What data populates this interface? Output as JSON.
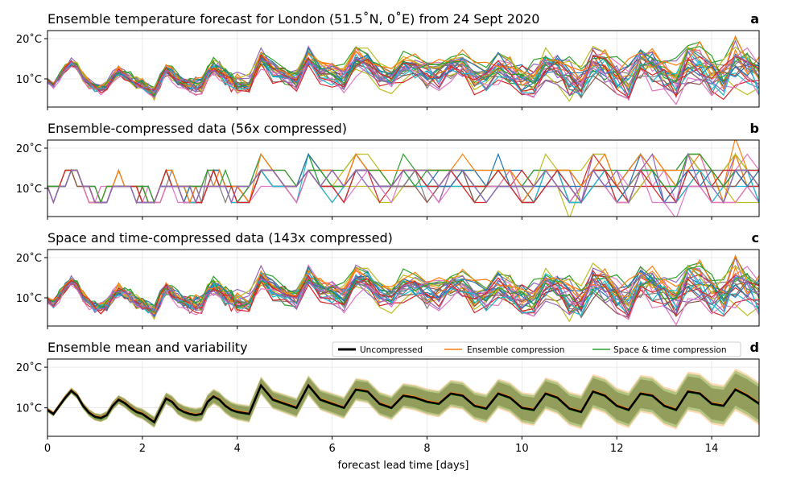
{
  "chart_data": {
    "type": "line",
    "xlabel": "forecast lead time [days]",
    "xlim": [
      0,
      15
    ],
    "x_ticks": [
      "0",
      "2",
      "4",
      "6",
      "8",
      "10",
      "12",
      "14"
    ],
    "y_ticks": [
      "10˚C",
      "20˚C"
    ],
    "ylim": [
      3,
      22
    ],
    "panels": [
      {
        "label": "a",
        "title": "Ensemble temperature forecast for London (51.5˚N, 0˚E) from 24 Sept 2020",
        "kind": "ensemble",
        "members": 25,
        "description_values": "25 ensemble members, 3-hourly then 6-hourly temperatures; diurnal cycle ~7–15˚C early, spread widening to ~3–21˚C after day 4"
      },
      {
        "label": "b",
        "title": "Ensemble-compressed data (56x compressed)",
        "kind": "quantized",
        "members": 25
      },
      {
        "label": "c",
        "title": "Space and time-compressed data (143x compressed)",
        "kind": "ensemble",
        "members": 25
      },
      {
        "label": "d",
        "title": "Ensemble mean and variability",
        "kind": "mean",
        "series": [
          {
            "name": "Uncompressed",
            "color": "#000000"
          },
          {
            "name": "Ensemble compression",
            "color": "#ff7f0e"
          },
          {
            "name": "Space & time compression",
            "color": "#2ca02c"
          }
        ]
      }
    ],
    "mean_curve": {
      "x": [
        0,
        0.125,
        0.25,
        0.375,
        0.5,
        0.625,
        0.75,
        0.875,
        1.0,
        1.125,
        1.25,
        1.375,
        1.5,
        1.625,
        1.75,
        1.875,
        2.0,
        2.125,
        2.25,
        2.375,
        2.5,
        2.625,
        2.75,
        2.875,
        3.0,
        3.125,
        3.25,
        3.375,
        3.5,
        3.625,
        3.75,
        3.875,
        4.0,
        4.25,
        4.5,
        4.75,
        5.0,
        5.25,
        5.5,
        5.75,
        6.0,
        6.25,
        6.5,
        6.75,
        7.0,
        7.25,
        7.5,
        7.75,
        8.0,
        8.25,
        8.5,
        8.75,
        9.0,
        9.25,
        9.5,
        9.75,
        10.0,
        10.25,
        10.5,
        10.75,
        11.0,
        11.25,
        11.5,
        11.75,
        12.0,
        12.25,
        12.5,
        12.75,
        13.0,
        13.25,
        13.5,
        13.75,
        14.0,
        14.25,
        14.5,
        14.75,
        15.0
      ],
      "y": [
        9.5,
        8.5,
        10.5,
        12.5,
        14.2,
        13.0,
        10.5,
        8.8,
        7.8,
        7.5,
        8.2,
        10.5,
        12.0,
        11.2,
        10.0,
        9.0,
        8.5,
        7.5,
        6.5,
        9.5,
        12.3,
        11.5,
        9.8,
        9.0,
        8.5,
        8.2,
        8.5,
        11.5,
        12.8,
        12.0,
        10.5,
        9.5,
        9.0,
        8.5,
        15.5,
        12.0,
        11.0,
        10.0,
        15.5,
        12.0,
        11.0,
        10.0,
        14.5,
        14.0,
        11.0,
        10.0,
        13.0,
        12.5,
        11.5,
        11.0,
        13.5,
        13.0,
        10.5,
        9.8,
        13.5,
        12.5,
        10.0,
        9.5,
        13.5,
        12.5,
        9.8,
        9.0,
        14.0,
        13.0,
        10.5,
        9.5,
        13.5,
        13.0,
        10.5,
        9.5,
        14.0,
        13.5,
        11.0,
        10.5,
        14.5,
        13.0,
        11.0
      ]
    }
  }
}
